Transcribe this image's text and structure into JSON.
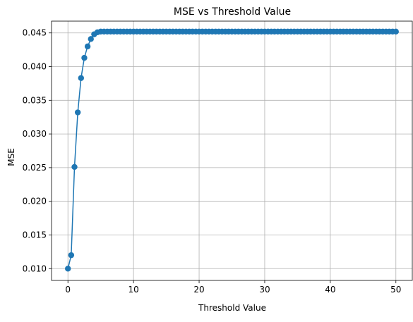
{
  "chart_data": {
    "type": "line",
    "title": "MSE vs Threshold Value",
    "xlabel": "Threshold Value",
    "ylabel": "MSE",
    "xlim": [
      -2.5,
      52.5
    ],
    "ylim": [
      0.00825,
      0.04675
    ],
    "xticks": [
      0,
      10,
      20,
      30,
      40,
      50
    ],
    "xtick_labels": [
      "0",
      "10",
      "20",
      "30",
      "40",
      "50"
    ],
    "yticks": [
      0.01,
      0.015,
      0.02,
      0.025,
      0.03,
      0.035,
      0.04,
      0.045
    ],
    "ytick_labels": [
      "0.010",
      "0.015",
      "0.020",
      "0.025",
      "0.030",
      "0.035",
      "0.040",
      "0.045"
    ],
    "grid": true,
    "marker": "circle",
    "line_color": "#1f77b4",
    "x": [
      0.0,
      0.5,
      1.0,
      1.5,
      2.0,
      2.5,
      3.0,
      3.5,
      4.0,
      4.5,
      5.0,
      5.5,
      6.0,
      6.5,
      7.0,
      7.5,
      8.0,
      8.5,
      9.0,
      9.5,
      10.0,
      10.5,
      11.0,
      11.5,
      12.0,
      12.5,
      13.0,
      13.5,
      14.0,
      14.5,
      15.0,
      15.5,
      16.0,
      16.5,
      17.0,
      17.5,
      18.0,
      18.5,
      19.0,
      19.5,
      20.0,
      20.5,
      21.0,
      21.5,
      22.0,
      22.5,
      23.0,
      23.5,
      24.0,
      24.5,
      25.0,
      25.5,
      26.0,
      26.5,
      27.0,
      27.5,
      28.0,
      28.5,
      29.0,
      29.5,
      30.0,
      30.5,
      31.0,
      31.5,
      32.0,
      32.5,
      33.0,
      33.5,
      34.0,
      34.5,
      35.0,
      35.5,
      36.0,
      36.5,
      37.0,
      37.5,
      38.0,
      38.5,
      39.0,
      39.5,
      40.0,
      40.5,
      41.0,
      41.5,
      42.0,
      42.5,
      43.0,
      43.5,
      44.0,
      44.5,
      45.0,
      45.5,
      46.0,
      46.5,
      47.0,
      47.5,
      48.0,
      48.5,
      49.0,
      49.5,
      50.0
    ],
    "y": [
      0.01,
      0.012,
      0.0251,
      0.0332,
      0.0383,
      0.0413,
      0.043,
      0.0441,
      0.0448,
      0.0451,
      0.0452,
      0.0452,
      0.0452,
      0.0452,
      0.0452,
      0.0452,
      0.0452,
      0.0452,
      0.0452,
      0.0452,
      0.0452,
      0.0452,
      0.0452,
      0.0452,
      0.0452,
      0.0452,
      0.0452,
      0.0452,
      0.0452,
      0.0452,
      0.0452,
      0.0452,
      0.0452,
      0.0452,
      0.0452,
      0.0452,
      0.0452,
      0.0452,
      0.0452,
      0.0452,
      0.0452,
      0.0452,
      0.0452,
      0.0452,
      0.0452,
      0.0452,
      0.0452,
      0.0452,
      0.0452,
      0.0452,
      0.0452,
      0.0452,
      0.0452,
      0.0452,
      0.0452,
      0.0452,
      0.0452,
      0.0452,
      0.0452,
      0.0452,
      0.0452,
      0.0452,
      0.0452,
      0.0452,
      0.0452,
      0.0452,
      0.0452,
      0.0452,
      0.0452,
      0.0452,
      0.0452,
      0.0452,
      0.0452,
      0.0452,
      0.0452,
      0.0452,
      0.0452,
      0.0452,
      0.0452,
      0.0452,
      0.0452,
      0.0452,
      0.0452,
      0.0452,
      0.0452,
      0.0452,
      0.0452,
      0.0452,
      0.0452,
      0.0452,
      0.0452,
      0.0452,
      0.0452,
      0.0452,
      0.0452,
      0.0452,
      0.0452,
      0.0452,
      0.0452,
      0.0452,
      0.0452
    ]
  }
}
